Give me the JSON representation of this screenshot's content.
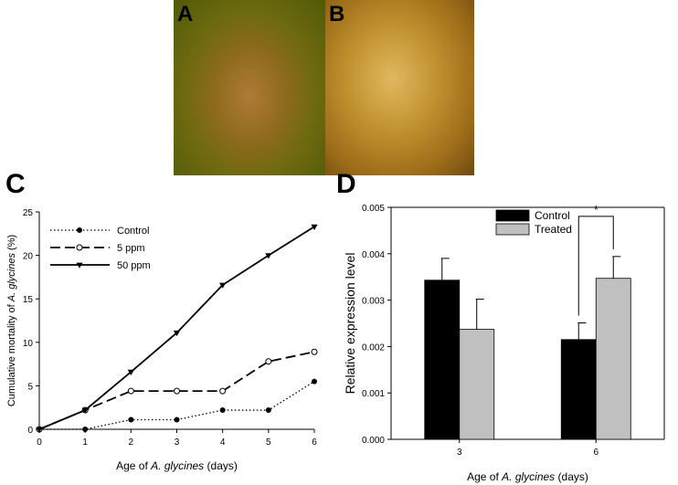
{
  "panels": {
    "a_letter": "A",
    "b_letter": "B",
    "c_letter": "C",
    "d_letter": "D"
  },
  "colors": {
    "photo_a": "#8c6a1c",
    "photo_b": "#c0902e",
    "control_bar": "#000000",
    "treated_bar": "#c0c0c0"
  },
  "chart_data": [
    {
      "type": "line",
      "title": "",
      "xlabel": "Age of A. glycines (days)",
      "ylabel": "Cumulative mortality of A. glycines (%)",
      "x": [
        0,
        1,
        2,
        3,
        4,
        5,
        6
      ],
      "xticks": [
        "0",
        "1",
        "2",
        "3",
        "4",
        "5",
        "6"
      ],
      "yticks": [
        "0",
        "5",
        "10",
        "15",
        "20",
        "25"
      ],
      "xlim": [
        0,
        6
      ],
      "ylim": [
        0,
        25
      ],
      "grid": false,
      "legend_position": "top-left",
      "series": [
        {
          "name": "Control",
          "values": [
            0,
            0,
            1.1,
            1.1,
            2.2,
            2.2,
            5.5
          ],
          "marker": "filled-circle",
          "line": "dotted"
        },
        {
          "name": "5 ppm",
          "values": [
            0,
            2.2,
            4.4,
            4.4,
            4.4,
            7.8,
            8.9
          ],
          "marker": "open-circle",
          "line": "dashed"
        },
        {
          "name": "50 ppm",
          "values": [
            0,
            2.2,
            6.6,
            11.1,
            16.6,
            20.0,
            23.3
          ],
          "marker": "filled-triangle-down",
          "line": "solid"
        }
      ]
    },
    {
      "type": "bar",
      "title": "",
      "xlabel": "Age of A. glycines (days)",
      "ylabel": "Relative expression level",
      "categories": [
        "3",
        "6"
      ],
      "yticks": [
        "0.000",
        "0.001",
        "0.002",
        "0.003",
        "0.004",
        "0.005"
      ],
      "ylim": [
        0,
        0.005
      ],
      "grid": false,
      "legend_position": "top-center",
      "series": [
        {
          "name": "Control",
          "values": [
            0.00343,
            0.00215
          ],
          "errors": [
            0.00047,
            0.00036
          ]
        },
        {
          "name": "Treated",
          "values": [
            0.00237,
            0.00347
          ],
          "errors": [
            0.00065,
            0.00047
          ]
        }
      ],
      "annotations": [
        {
          "text": "*",
          "category": "6"
        }
      ]
    }
  ]
}
